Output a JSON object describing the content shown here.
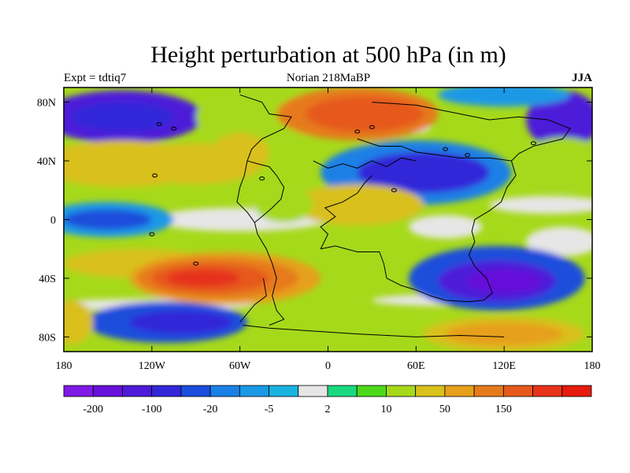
{
  "title": "Height perturbation at 500 hPa (in m)",
  "subtitle_left": "Expt = tdtiq7",
  "subtitle_center": "Norian   218MaBP",
  "subtitle_right": "JJA",
  "lon_ticks": [
    {
      "value": -180,
      "label": "180"
    },
    {
      "value": -120,
      "label": "120W"
    },
    {
      "value": -60,
      "label": "60W"
    },
    {
      "value": 0,
      "label": "0"
    },
    {
      "value": 60,
      "label": "60E"
    },
    {
      "value": 120,
      "label": "120E"
    },
    {
      "value": 180,
      "label": "180"
    }
  ],
  "lat_ticks": [
    {
      "value": 80,
      "label": "80N"
    },
    {
      "value": 40,
      "label": "40N"
    },
    {
      "value": 0,
      "label": "0"
    },
    {
      "value": -40,
      "label": "40S"
    },
    {
      "value": -80,
      "label": "80S"
    }
  ],
  "lon_range": [
    -180,
    180
  ],
  "lat_range": [
    -90,
    90
  ],
  "colorbar": {
    "colors": [
      "#7f19e6",
      "#6610d9",
      "#4d1ad9",
      "#3326d9",
      "#1a4ddb",
      "#1a80e6",
      "#1a99e6",
      "#19b3e0",
      "#e6e6e6",
      "#19d980",
      "#4dd91a",
      "#a6d91a",
      "#d9c01a",
      "#e6a01a",
      "#e67a1a",
      "#e6591a",
      "#e6331a",
      "#e61a0d"
    ],
    "tick_labels": [
      {
        "after_box": 1,
        "label": "-200"
      },
      {
        "after_box": 3,
        "label": "-100"
      },
      {
        "after_box": 5,
        "label": "-20"
      },
      {
        "after_box": 7,
        "label": "-5"
      },
      {
        "after_box": 9,
        "label": "2"
      },
      {
        "after_box": 11,
        "label": "10"
      },
      {
        "after_box": 13,
        "label": "50"
      },
      {
        "after_box": 15,
        "label": "150"
      }
    ]
  },
  "field_blobs": [
    {
      "lon": -140,
      "lat": 70,
      "rx": 55,
      "ry": 18,
      "level": 2
    },
    {
      "lon": -140,
      "lat": 70,
      "rx": 35,
      "ry": 10,
      "level": 3
    },
    {
      "lon": -45,
      "lat": 70,
      "rx": 45,
      "ry": 20,
      "level": 11
    },
    {
      "lon": 20,
      "lat": 72,
      "rx": 55,
      "ry": 18,
      "level": 14
    },
    {
      "lon": 25,
      "lat": 72,
      "rx": 40,
      "ry": 12,
      "level": 15
    },
    {
      "lon": 160,
      "lat": 68,
      "rx": 25,
      "ry": 20,
      "level": 2
    },
    {
      "lon": 120,
      "lat": 85,
      "rx": 45,
      "ry": 8,
      "level": 6
    },
    {
      "lon": -140,
      "lat": 38,
      "rx": 55,
      "ry": 16,
      "level": 12
    },
    {
      "lon": -90,
      "lat": 38,
      "rx": 45,
      "ry": 14,
      "level": 12
    },
    {
      "lon": -60,
      "lat": 45,
      "rx": 20,
      "ry": 14,
      "level": 12
    },
    {
      "lon": 60,
      "lat": 32,
      "rx": 65,
      "ry": 22,
      "level": 5
    },
    {
      "lon": 65,
      "lat": 32,
      "rx": 45,
      "ry": 14,
      "level": 3
    },
    {
      "lon": 160,
      "lat": 38,
      "rx": 30,
      "ry": 18,
      "level": 11
    },
    {
      "lon": -150,
      "lat": 0,
      "rx": 45,
      "ry": 12,
      "level": 6
    },
    {
      "lon": -150,
      "lat": 0,
      "rx": 30,
      "ry": 7,
      "level": 4
    },
    {
      "lon": 20,
      "lat": 10,
      "rx": 45,
      "ry": 14,
      "level": 12
    },
    {
      "lon": -30,
      "lat": 10,
      "rx": 20,
      "ry": 12,
      "level": 11
    },
    {
      "lon": 80,
      "lat": -5,
      "rx": 25,
      "ry": 8,
      "level": 8
    },
    {
      "lon": -130,
      "lat": -30,
      "rx": 50,
      "ry": 10,
      "level": 12
    },
    {
      "lon": -70,
      "lat": -40,
      "rx": 65,
      "ry": 18,
      "level": 13
    },
    {
      "lon": -75,
      "lat": -40,
      "rx": 55,
      "ry": 14,
      "level": 14
    },
    {
      "lon": -80,
      "lat": -40,
      "rx": 40,
      "ry": 10,
      "level": 15
    },
    {
      "lon": -85,
      "lat": -40,
      "rx": 25,
      "ry": 6,
      "level": 16
    },
    {
      "lon": 115,
      "lat": -40,
      "rx": 60,
      "ry": 22,
      "level": 4
    },
    {
      "lon": 115,
      "lat": -42,
      "rx": 40,
      "ry": 14,
      "level": 2
    },
    {
      "lon": 120,
      "lat": -42,
      "rx": 25,
      "ry": 8,
      "level": 1
    },
    {
      "lon": -110,
      "lat": -70,
      "rx": 55,
      "ry": 14,
      "level": 4
    },
    {
      "lon": -100,
      "lat": -70,
      "rx": 35,
      "ry": 8,
      "level": 3
    },
    {
      "lon": 120,
      "lat": -78,
      "rx": 55,
      "ry": 12,
      "level": 12
    },
    {
      "lon": 120,
      "lat": -78,
      "rx": 40,
      "ry": 8,
      "level": 13
    },
    {
      "lon": -175,
      "lat": -70,
      "rx": 15,
      "ry": 15,
      "level": 12
    }
  ]
}
